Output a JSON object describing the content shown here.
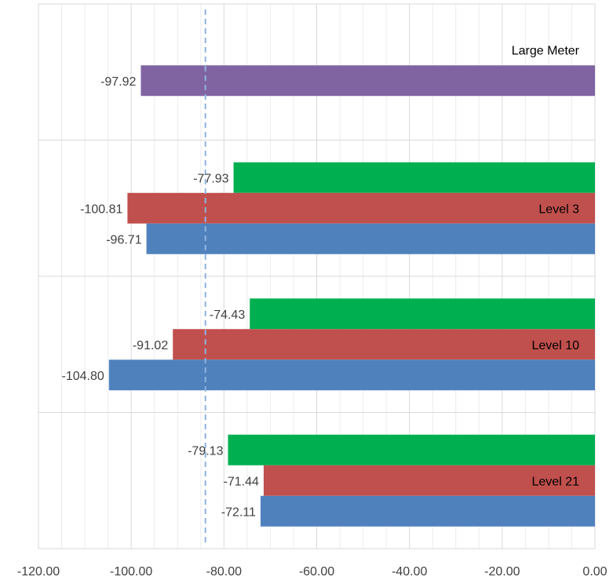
{
  "chart_data": {
    "type": "bar",
    "orientation": "horizontal",
    "xlim": [
      -120,
      0
    ],
    "x_ticks": [
      "-120.00",
      "-100.00",
      "-80.00",
      "-60.00",
      "-40.00",
      "-20.00",
      "0.00"
    ],
    "grid": true,
    "reference_line": {
      "value": -84,
      "style": "dashed",
      "color": "#8fb3e0"
    },
    "groups": [
      {
        "name": "Large Meter",
        "bars": [
          {
            "value": -97.92,
            "label": "-97.92",
            "color": "#8064a2"
          }
        ]
      },
      {
        "name": "Level 3",
        "bars": [
          {
            "value": -77.93,
            "label": "-77.93",
            "color": "#00b050"
          },
          {
            "value": -100.81,
            "label": "-100.81",
            "color": "#c0504d"
          },
          {
            "value": -96.71,
            "label": "-96.71",
            "color": "#4f81bd"
          }
        ]
      },
      {
        "name": "Level 10",
        "bars": [
          {
            "value": -74.43,
            "label": "-74.43",
            "color": "#00b050"
          },
          {
            "value": -91.02,
            "label": "-91.02",
            "color": "#c0504d"
          },
          {
            "value": -104.8,
            "label": "-104.80",
            "color": "#4f81bd"
          }
        ]
      },
      {
        "name": "Level 21",
        "bars": [
          {
            "value": -79.13,
            "label": "-79.13",
            "color": "#00b050"
          },
          {
            "value": -71.44,
            "label": "-71.44",
            "color": "#c0504d"
          },
          {
            "value": -72.11,
            "label": "-72.11",
            "color": "#4f81bd"
          }
        ]
      }
    ]
  }
}
